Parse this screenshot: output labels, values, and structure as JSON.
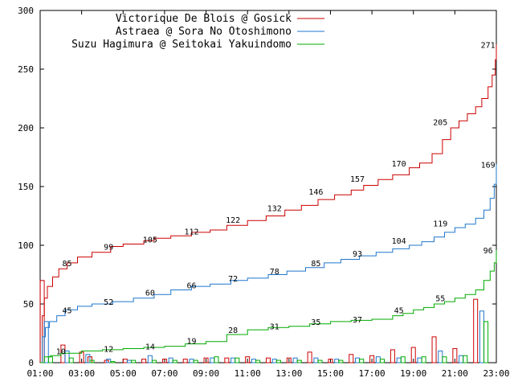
{
  "chart_data": {
    "type": "line",
    "title": "",
    "xlabel": "",
    "ylabel": "",
    "ylim": [
      0,
      300
    ],
    "yticks": [
      0,
      50,
      100,
      150,
      200,
      250,
      300
    ],
    "xlim": [
      1,
      23
    ],
    "xticks": [
      "01:00",
      "03:00",
      "05:00",
      "07:00",
      "09:00",
      "11:00",
      "13:00",
      "15:00",
      "17:00",
      "19:00",
      "21:00",
      "23:00"
    ],
    "grid": false,
    "legend_position": "top-left",
    "series": [
      {
        "name": "Victorique De Blois @ Gosick",
        "color": "#cc0000",
        "cumulative": [
          [
            1.0,
            0
          ],
          [
            1.1,
            40
          ],
          [
            1.2,
            55
          ],
          [
            1.35,
            65
          ],
          [
            1.6,
            73
          ],
          [
            1.9,
            80
          ],
          [
            2.3,
            85
          ],
          [
            2.8,
            90
          ],
          [
            3.5,
            94
          ],
          [
            4.4,
            99
          ],
          [
            5.0,
            101
          ],
          [
            6.0,
            104
          ],
          [
            6.5,
            106
          ],
          [
            7.3,
            108
          ],
          [
            8.3,
            111
          ],
          [
            9.2,
            113
          ],
          [
            10.0,
            117
          ],
          [
            11.0,
            121
          ],
          [
            11.9,
            125
          ],
          [
            12.8,
            130
          ],
          [
            13.6,
            134
          ],
          [
            14.4,
            139
          ],
          [
            15.2,
            143
          ],
          [
            16.0,
            147
          ],
          [
            16.6,
            151
          ],
          [
            17.3,
            156
          ],
          [
            18.0,
            160
          ],
          [
            18.8,
            166
          ],
          [
            19.3,
            170
          ],
          [
            19.9,
            178
          ],
          [
            20.4,
            190
          ],
          [
            20.8,
            200
          ],
          [
            21.2,
            206
          ],
          [
            21.6,
            212
          ],
          [
            22.0,
            218
          ],
          [
            22.3,
            225
          ],
          [
            22.6,
            235
          ],
          [
            22.8,
            245
          ],
          [
            22.95,
            258
          ],
          [
            23.0,
            271
          ]
        ],
        "hourly_bars": [
          {
            "x": 1.1,
            "value": 70
          },
          {
            "x": 2.1,
            "value": 15
          },
          {
            "x": 3.0,
            "value": 9
          },
          {
            "x": 3.4,
            "value": 5
          },
          {
            "x": 4.2,
            "value": 2
          },
          {
            "x": 5.1,
            "value": 3
          },
          {
            "x": 6.0,
            "value": 3
          },
          {
            "x": 7.0,
            "value": 3
          },
          {
            "x": 8.0,
            "value": 3
          },
          {
            "x": 9.0,
            "value": 4
          },
          {
            "x": 10.0,
            "value": 4
          },
          {
            "x": 11.0,
            "value": 5
          },
          {
            "x": 12.0,
            "value": 4
          },
          {
            "x": 13.0,
            "value": 4
          },
          {
            "x": 14.0,
            "value": 9
          },
          {
            "x": 15.0,
            "value": 3
          },
          {
            "x": 16.0,
            "value": 7
          },
          {
            "x": 17.0,
            "value": 6
          },
          {
            "x": 18.0,
            "value": 11
          },
          {
            "x": 19.0,
            "value": 13
          },
          {
            "x": 20.0,
            "value": 22
          },
          {
            "x": 21.0,
            "value": 12
          },
          {
            "x": 22.0,
            "value": 54
          }
        ]
      },
      {
        "name": "Astraea @ Sora No Otoshimono",
        "color": "#1f77cc",
        "cumulative": [
          [
            1.0,
            0
          ],
          [
            1.1,
            22
          ],
          [
            1.25,
            30
          ],
          [
            1.45,
            35
          ],
          [
            1.8,
            40
          ],
          [
            2.2,
            45
          ],
          [
            2.8,
            48
          ],
          [
            3.5,
            50
          ],
          [
            4.5,
            52
          ],
          [
            5.5,
            55
          ],
          [
            6.5,
            58
          ],
          [
            7.3,
            62
          ],
          [
            8.3,
            65
          ],
          [
            9.2,
            67
          ],
          [
            10.2,
            70
          ],
          [
            11.0,
            72
          ],
          [
            12.0,
            75
          ],
          [
            12.9,
            78
          ],
          [
            13.8,
            81
          ],
          [
            14.7,
            85
          ],
          [
            15.5,
            88
          ],
          [
            16.4,
            91
          ],
          [
            17.2,
            94
          ],
          [
            18.0,
            97
          ],
          [
            18.8,
            100
          ],
          [
            19.4,
            103
          ],
          [
            20.0,
            107
          ],
          [
            20.5,
            111
          ],
          [
            21.0,
            115
          ],
          [
            21.5,
            118
          ],
          [
            22.0,
            123
          ],
          [
            22.4,
            130
          ],
          [
            22.7,
            140
          ],
          [
            22.9,
            152
          ],
          [
            23.0,
            169
          ]
        ],
        "hourly_bars": [
          {
            "x": 1.3,
            "value": 35
          },
          {
            "x": 2.3,
            "value": 10
          },
          {
            "x": 3.3,
            "value": 7
          },
          {
            "x": 4.3,
            "value": 3
          },
          {
            "x": 5.3,
            "value": 2
          },
          {
            "x": 6.3,
            "value": 6
          },
          {
            "x": 7.3,
            "value": 4
          },
          {
            "x": 8.3,
            "value": 3
          },
          {
            "x": 9.3,
            "value": 4
          },
          {
            "x": 10.3,
            "value": 4
          },
          {
            "x": 11.3,
            "value": 3
          },
          {
            "x": 12.3,
            "value": 3
          },
          {
            "x": 13.3,
            "value": 4
          },
          {
            "x": 14.3,
            "value": 4
          },
          {
            "x": 15.3,
            "value": 3
          },
          {
            "x": 16.3,
            "value": 4
          },
          {
            "x": 17.3,
            "value": 5
          },
          {
            "x": 18.3,
            "value": 4
          },
          {
            "x": 19.3,
            "value": 4
          },
          {
            "x": 20.3,
            "value": 10
          },
          {
            "x": 21.3,
            "value": 6
          },
          {
            "x": 22.3,
            "value": 44
          }
        ]
      },
      {
        "name": "Suzu Hagimura @ Seitokai Yakuindomo",
        "color": "#00aa00",
        "cumulative": [
          [
            1.0,
            0
          ],
          [
            1.2,
            5
          ],
          [
            1.5,
            6
          ],
          [
            2.0,
            8
          ],
          [
            3.0,
            10
          ],
          [
            4.0,
            11
          ],
          [
            5.0,
            12
          ],
          [
            6.0,
            13
          ],
          [
            7.0,
            14
          ],
          [
            8.0,
            16
          ],
          [
            9.0,
            18
          ],
          [
            10.0,
            24
          ],
          [
            11.0,
            28
          ],
          [
            12.0,
            30
          ],
          [
            13.0,
            31
          ],
          [
            14.0,
            33
          ],
          [
            15.0,
            35
          ],
          [
            16.0,
            36
          ],
          [
            17.0,
            37
          ],
          [
            18.0,
            40
          ],
          [
            18.5,
            42
          ],
          [
            19.0,
            45
          ],
          [
            19.5,
            47
          ],
          [
            20.0,
            50
          ],
          [
            20.5,
            52
          ],
          [
            21.0,
            55
          ],
          [
            21.5,
            58
          ],
          [
            22.0,
            62
          ],
          [
            22.4,
            70
          ],
          [
            22.7,
            78
          ],
          [
            22.9,
            85
          ],
          [
            23.0,
            96
          ]
        ],
        "hourly_bars": [
          {
            "x": 1.5,
            "value": 5
          },
          {
            "x": 2.5,
            "value": 4
          },
          {
            "x": 3.5,
            "value": 2
          },
          {
            "x": 4.5,
            "value": 1
          },
          {
            "x": 5.5,
            "value": 2
          },
          {
            "x": 6.5,
            "value": 2
          },
          {
            "x": 7.5,
            "value": 2
          },
          {
            "x": 8.5,
            "value": 2
          },
          {
            "x": 9.5,
            "value": 5
          },
          {
            "x": 10.5,
            "value": 4
          },
          {
            "x": 11.5,
            "value": 2
          },
          {
            "x": 12.5,
            "value": 2
          },
          {
            "x": 13.5,
            "value": 2
          },
          {
            "x": 14.5,
            "value": 2
          },
          {
            "x": 15.5,
            "value": 2
          },
          {
            "x": 16.5,
            "value": 3
          },
          {
            "x": 17.5,
            "value": 3
          },
          {
            "x": 18.5,
            "value": 5
          },
          {
            "x": 19.5,
            "value": 5
          },
          {
            "x": 20.5,
            "value": 5
          },
          {
            "x": 21.5,
            "value": 6
          },
          {
            "x": 22.5,
            "value": 35
          }
        ]
      }
    ],
    "data_labels": [
      {
        "series": 0,
        "x": 2.3,
        "value": 85,
        "text": "85"
      },
      {
        "series": 0,
        "x": 4.3,
        "value": 99,
        "text": "99"
      },
      {
        "series": 0,
        "x": 6.3,
        "value": 105,
        "text": "105"
      },
      {
        "series": 0,
        "x": 8.3,
        "value": 112,
        "text": "112"
      },
      {
        "series": 0,
        "x": 10.3,
        "value": 122,
        "text": "122"
      },
      {
        "series": 0,
        "x": 12.3,
        "value": 132,
        "text": "132"
      },
      {
        "series": 0,
        "x": 14.3,
        "value": 146,
        "text": "146"
      },
      {
        "series": 0,
        "x": 16.3,
        "value": 157,
        "text": "157"
      },
      {
        "series": 0,
        "x": 18.3,
        "value": 170,
        "text": "170"
      },
      {
        "series": 0,
        "x": 20.3,
        "value": 205,
        "text": "205"
      },
      {
        "series": 0,
        "x": 22.6,
        "value": 271,
        "text": "271"
      },
      {
        "series": 1,
        "x": 2.3,
        "value": 45,
        "text": "45"
      },
      {
        "series": 1,
        "x": 4.3,
        "value": 52,
        "text": "52"
      },
      {
        "series": 1,
        "x": 6.3,
        "value": 60,
        "text": "60"
      },
      {
        "series": 1,
        "x": 8.3,
        "value": 66,
        "text": "66"
      },
      {
        "series": 1,
        "x": 10.3,
        "value": 72,
        "text": "72"
      },
      {
        "series": 1,
        "x": 12.3,
        "value": 78,
        "text": "78"
      },
      {
        "series": 1,
        "x": 14.3,
        "value": 85,
        "text": "85"
      },
      {
        "series": 1,
        "x": 16.3,
        "value": 93,
        "text": "93"
      },
      {
        "series": 1,
        "x": 18.3,
        "value": 104,
        "text": "104"
      },
      {
        "series": 1,
        "x": 20.3,
        "value": 119,
        "text": "119"
      },
      {
        "series": 1,
        "x": 22.6,
        "value": 169,
        "text": "169"
      },
      {
        "series": 2,
        "x": 4.3,
        "value": 12,
        "text": "12"
      },
      {
        "series": 2,
        "x": 6.3,
        "value": 14,
        "text": "14"
      },
      {
        "series": 2,
        "x": 8.3,
        "value": 19,
        "text": "19"
      },
      {
        "series": 2,
        "x": 10.3,
        "value": 28,
        "text": "28"
      },
      {
        "series": 2,
        "x": 12.3,
        "value": 31,
        "text": "31"
      },
      {
        "series": 2,
        "x": 14.3,
        "value": 35,
        "text": "35"
      },
      {
        "series": 2,
        "x": 16.3,
        "value": 37,
        "text": "37"
      },
      {
        "series": 2,
        "x": 18.3,
        "value": 45,
        "text": "45"
      },
      {
        "series": 2,
        "x": 20.3,
        "value": 55,
        "text": "55"
      },
      {
        "series": 2,
        "x": 22.6,
        "value": 96,
        "text": "96"
      },
      {
        "series": 0,
        "x": 2.0,
        "value": 10,
        "text": "10"
      }
    ]
  }
}
